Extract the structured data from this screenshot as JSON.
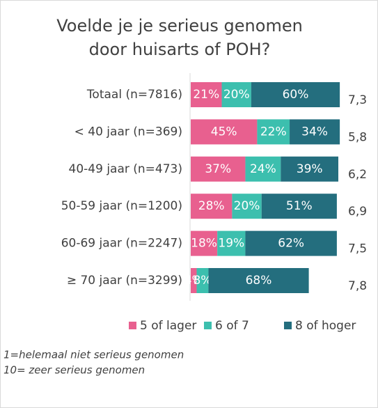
{
  "chart_data": {
    "type": "stacked-bar-horizontal",
    "title": [
      "Voelde je je serieus genomen",
      "door huisarts of POH?"
    ],
    "categories": [
      "Totaal (n=7816)",
      "< 40 jaar (n=369)",
      "40-49 jaar (n=473)",
      "50-59 jaar (n=1200)",
      "60-69 jaar (n=2247)",
      "≥ 70 jaar (n=3299)"
    ],
    "series": [
      {
        "name": "5 of lager",
        "color": "#e8608f",
        "values": [
          21,
          45,
          37,
          28,
          18,
          4
        ],
        "value_labels": [
          "21%",
          "45%",
          "37%",
          "28%",
          "18%",
          "4%"
        ]
      },
      {
        "name": "6 of 7",
        "color": "#3cbfae",
        "values": [
          20,
          22,
          24,
          20,
          19,
          8
        ],
        "value_labels": [
          "20%",
          "22%",
          "24%",
          "20%",
          "19%",
          "8%"
        ]
      },
      {
        "name": "8 of hoger",
        "color": "#246e7e",
        "values": [
          60,
          34,
          39,
          51,
          62,
          68
        ],
        "value_labels": [
          "60%",
          "34%",
          "39%",
          "51%",
          "62%",
          "68%"
        ]
      }
    ],
    "averages": {
      "values": [
        7.3,
        5.8,
        6.2,
        6.9,
        7.5,
        7.8
      ],
      "value_labels": [
        "7,3",
        "5,8",
        "6,2",
        "6,9",
        "7,5",
        "7,8"
      ]
    },
    "notes": [
      "1=helemaal niet serieus genomen",
      "10= zeer serieus genomen"
    ]
  }
}
